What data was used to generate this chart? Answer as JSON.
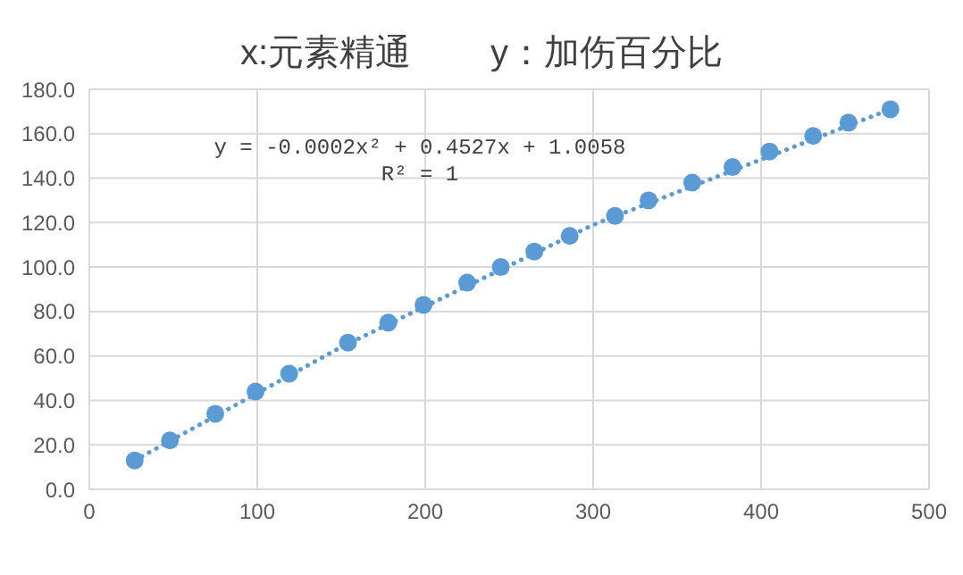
{
  "chart_data": {
    "type": "scatter",
    "title": "x:元素精通        y：加伤百分比",
    "series": [
      {
        "color": "#5b9bd5",
        "x": [
          27,
          48,
          75,
          99,
          119,
          154,
          178,
          199,
          225,
          245,
          265,
          286,
          313,
          333,
          359,
          383,
          405,
          431,
          452,
          477
        ],
        "values": [
          13,
          22,
          34,
          44,
          52,
          66,
          75,
          83,
          93,
          100,
          107,
          114,
          123,
          130,
          138,
          145,
          152,
          159,
          165,
          171
        ]
      },
      {
        "type": "line",
        "color": "#5b9bd5",
        "line_style": "dotted",
        "marker": "none",
        "x": [
          27,
          150,
          300,
          477
        ],
        "values": [
          13,
          64,
          119,
          171
        ]
      }
    ],
    "xlim": [
      0,
      500
    ],
    "xticks": [
      0,
      100,
      200,
      300,
      400,
      500
    ],
    "ylim": [
      0,
      180
    ],
    "yticks": [
      {
        "value": 0,
        "label": "0.0"
      },
      {
        "value": 20,
        "label": "20.0"
      },
      {
        "value": 40,
        "label": "40.0"
      },
      {
        "value": 60,
        "label": "60.0"
      },
      {
        "value": 80,
        "label": "80.0"
      },
      {
        "value": 100,
        "label": "100.0"
      },
      {
        "value": 120,
        "label": "120.0"
      },
      {
        "value": 140,
        "label": "140.0"
      },
      {
        "value": 160,
        "label": "160.0"
      },
      {
        "value": 180,
        "label": "180.0"
      }
    ],
    "grid": true,
    "marker": "circle",
    "annotations": [
      "y = -0.0002x² + 0.4527x + 1.0058",
      "R² = 1"
    ]
  }
}
